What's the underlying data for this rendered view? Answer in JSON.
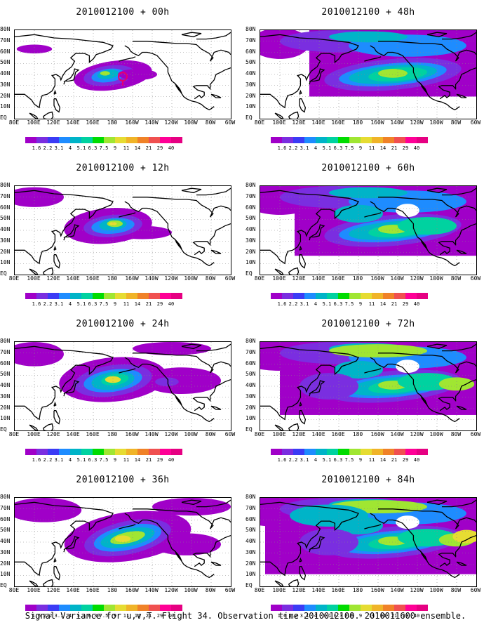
{
  "footer": "Signal Variance for u,v,T. Flight 34. Observation time 2010012100. 2010011600 ensemble.",
  "lat_labels": [
    "80N",
    "70N",
    "60N",
    "50N",
    "40N",
    "30N",
    "20N",
    "10N",
    "EQ"
  ],
  "lon_labels": [
    "80E",
    "100E",
    "120E",
    "140E",
    "160E",
    "180",
    "160W",
    "140W",
    "120W",
    "100W",
    "80W",
    "60W"
  ],
  "colorbar": {
    "levels": [
      "1.6",
      "2.2",
      "3.1",
      "4",
      "5.1",
      "6.3",
      "7.5",
      "9",
      "11",
      "14",
      "21",
      "29",
      "40"
    ],
    "colors": [
      "#a000c8",
      "#7a2ee0",
      "#3b3bf5",
      "#1e8cff",
      "#00b4c8",
      "#00d2a0",
      "#00dc00",
      "#a0e632",
      "#e6dc32",
      "#f0b428",
      "#f08228",
      "#f05050",
      "#ff0096",
      "#e60082"
    ]
  },
  "panels": [
    {
      "title": "2010012100 + 00h",
      "stage": 0
    },
    {
      "title": "2010012100 + 48h",
      "stage": 4
    },
    {
      "title": "2010012100 + 12h",
      "stage": 1
    },
    {
      "title": "2010012100 + 60h",
      "stage": 5
    },
    {
      "title": "2010012100 + 24h",
      "stage": 2
    },
    {
      "title": "2010012100 + 72h",
      "stage": 6
    },
    {
      "title": "2010012100 + 36h",
      "stage": 3
    },
    {
      "title": "2010012100 + 84h",
      "stage": 7
    }
  ]
}
